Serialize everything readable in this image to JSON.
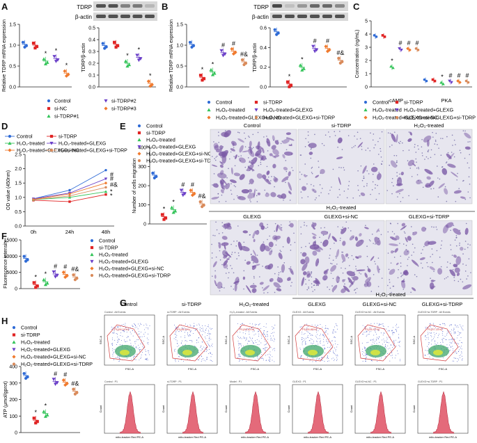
{
  "panel_letters": [
    "A",
    "B",
    "C",
    "D",
    "E",
    "F",
    "G",
    "H"
  ],
  "colors": {
    "control": "#2f6bd6",
    "sitdrp": "#e02424",
    "h2o2": "#34c45a",
    "glexg": "#6a3fc8",
    "glexg_sinc": "#f07a2e",
    "glexg_sitdrp": "#d98a5a",
    "blot": "#3a3a3a",
    "stain": "#7b5aa6"
  },
  "blot_labels": {
    "tdrp": "TDRP",
    "actin": "β-actin"
  },
  "legend_A": [
    "Control",
    "si-NC",
    "si-TDRP#1",
    "si-TDRP#2",
    "si-TDRP#3"
  ],
  "legend_B": [
    "Control",
    "si-TDRP",
    "H₂O₂-treated",
    "H₂O₂-treated+GLEXG",
    "H₂O₂-treated+GLEXG+si-NC",
    "H₂O₂-treated+GLEXG+si-TDRP"
  ],
  "legend_C": [
    "Control",
    "si-TDRP",
    "H₂O₂-treated",
    "H₂O₂-treated+GLEXG",
    "H₂O₂-treated+GLEXG+si-NC",
    "H₂O₂-treated+GLEXG+si-TDRP"
  ],
  "legend_D": [
    "Control",
    "si-TDRP",
    "H₂O₂-treated",
    "H₂O₂-treated+GLEXG",
    "H₂O₂-treated+GLEXG+si-NC",
    "H₂O₂-treated+GLEXG+si-TDRP"
  ],
  "legend_E": [
    "Control",
    "si-TDRP",
    "H₂O₂-treated",
    "H₂O₂-treated+GLEXG",
    "H₂O₂-treated+GLEXG+si-NC",
    "H₂O₂-treated+GLEXG+si-TDRP"
  ],
  "legend_F": [
    "Control",
    "si-TDRP",
    "H₂O₂-treated",
    "H₂O₂-treated+GLEXG",
    "H₂O₂-treated+GLEXG+si-NC",
    "H₂O₂-treated+GLEXG+si-TDRP"
  ],
  "legend_H": [
    "Control",
    "si-TDRP",
    "H₂O₂-treated",
    "H₂O₂-treated+GLEXG",
    "H₂O₂-treated+GLEXG+si-NC",
    "H₂O₂-treated+GLEXG+si-TDRP"
  ],
  "micro": {
    "row1": [
      "Control",
      "si-TDRP",
      "H₂O₂-treated"
    ],
    "group": "H₂O₂-treated",
    "row2": [
      "GLEXG",
      "GLEXG+si-NC",
      "GLEXG+si-TDRP"
    ]
  },
  "flow": {
    "group": "H₂O₂-treated",
    "titles": [
      "Control",
      "si-TDRP",
      "H₂O₂-treated",
      "GLEXG",
      "GLEXG+si-NC",
      "GLEXG+si-TDRP"
    ],
    "scatter_captions": [
      "Control : All Events",
      "si-TDRP : All Events",
      "H₂O₂-treated : All Events",
      "GLEXG : All Events",
      "GLEXG+si-NC : All Events",
      "GLEXG+si-TDRP : All Events"
    ],
    "gate_labels": [
      "P1(96.10%)",
      "P1(96.9%)",
      "P1(96.62%)",
      "P1(95.85%)",
      "P1(95.97%)",
      "P1(97.10%)"
    ],
    "hist_captions": [
      "Control : P1",
      "si-TDRP : P1",
      "Model : P1",
      "GLEXG : P1",
      "GLEXG+si-NC : P1",
      "GLEXG+si-TDRP : P1"
    ],
    "scatter_x": "FSC-A",
    "scatter_y": "SSC-A",
    "hist_x": "mito-tracker Red PE-A",
    "hist_y": "Count"
  },
  "chart_data": [
    {
      "panel": "A",
      "type": "scatter",
      "title": "",
      "ylabel": "Relative TDRP mRNA expression",
      "ylim": [
        0,
        1.5
      ],
      "yticks": [
        "0.0",
        "0.5",
        "1.0",
        "1.5"
      ],
      "categories": [
        "Control",
        "si-NC",
        "si-TDRP#1",
        "si-TDRP#2",
        "si-TDRP#3"
      ],
      "values": [
        1.02,
        1.0,
        0.62,
        0.68,
        0.33
      ],
      "annotations": [
        "",
        "",
        "*",
        "*",
        "*"
      ]
    },
    {
      "panel": "A2",
      "type": "scatter",
      "ylabel": "TDRP/β-actin",
      "ylim": [
        0,
        0.5
      ],
      "yticks": [
        "0.0",
        "0.1",
        "0.2",
        "0.3",
        "0.4",
        "0.5"
      ],
      "categories": [
        "Control",
        "si-NC",
        "si-TDRP#1",
        "si-TDRP#2",
        "si-TDRP#3"
      ],
      "values": [
        0.35,
        0.36,
        0.2,
        0.25,
        0.03
      ],
      "annotations": [
        "",
        "",
        "*",
        "*",
        "*"
      ]
    },
    {
      "panel": "B",
      "type": "scatter",
      "ylabel": "Relative TDRP mRNA expression",
      "ylim": [
        0,
        1.5
      ],
      "yticks": [
        "0.0",
        "0.5",
        "1.0",
        "1.5"
      ],
      "categories": [
        "Control",
        "si-TDRP",
        "H₂O₂-treated",
        "H₂O₂-treated+GLEXG",
        "H₂O₂-treated+GLEXG+si-NC",
        "H₂O₂-treated+GLEXG+si-TDRP"
      ],
      "values": [
        1.02,
        0.23,
        0.36,
        0.82,
        0.86,
        0.6
      ],
      "annotations": [
        "",
        "*",
        "*",
        "#",
        "#",
        "#&"
      ]
    },
    {
      "panel": "B2",
      "type": "scatter",
      "ylabel": "TDRP/β-actin",
      "ylim": [
        0,
        0.6
      ],
      "yticks": [
        "0.0",
        "0.2",
        "0.4",
        "0.6"
      ],
      "categories": [
        "Control",
        "si-TDRP",
        "H₂O₂-treated",
        "H₂O₂-treated+GLEXG",
        "H₂O₂-treated+GLEXG+si-NC",
        "H₂O₂-treated+GLEXG+si-TDRP"
      ],
      "values": [
        0.56,
        0.03,
        0.2,
        0.39,
        0.39,
        0.27
      ],
      "annotations": [
        "",
        "*",
        "*",
        "#",
        "#",
        "#&"
      ]
    },
    {
      "panel": "C",
      "type": "scatter",
      "ylabel": "Concentration (ng/mL)",
      "ylim": [
        0,
        5
      ],
      "yticks": [
        "0",
        "1",
        "2",
        "3",
        "4",
        "5"
      ],
      "groups": [
        "cAMP",
        "PKA"
      ],
      "series": [
        {
          "name": "Control",
          "values": [
            3.85,
            0.5
          ]
        },
        {
          "name": "si-TDRP",
          "values": [
            3.85,
            0.5
          ]
        },
        {
          "name": "H₂O₂-treated",
          "values": [
            1.5,
            0.28
          ]
        },
        {
          "name": "H₂O₂-treated+GLEXG",
          "values": [
            2.85,
            0.4
          ]
        },
        {
          "name": "H₂O₂-treated+GLEXG+si-NC",
          "values": [
            2.85,
            0.4
          ]
        },
        {
          "name": "H₂O₂-treated+GLEXG+si-TDRP",
          "values": [
            2.85,
            0.4
          ]
        }
      ],
      "annotations": [
        [
          "",
          "",
          "*",
          "#",
          "#",
          "#"
        ],
        [
          "",
          "",
          "*",
          "#",
          "#",
          "#"
        ]
      ]
    },
    {
      "panel": "D",
      "type": "line",
      "ylabel": "OD value (450nm)",
      "xlabel": "",
      "ylim": [
        0,
        2.5
      ],
      "yticks": [
        "0.0",
        "0.5",
        "1.0",
        "1.5",
        "2.0",
        "2.5"
      ],
      "x": [
        "0h",
        "24h",
        "48h"
      ],
      "series": [
        {
          "name": "Control",
          "values": [
            0.95,
            1.25,
            1.95
          ]
        },
        {
          "name": "si-TDRP",
          "values": [
            0.9,
            0.85,
            1.1
          ]
        },
        {
          "name": "H₂O₂-treated",
          "values": [
            0.92,
            1.0,
            1.2
          ]
        },
        {
          "name": "H₂O₂-treated+GLEXG",
          "values": [
            0.95,
            1.15,
            1.65
          ]
        },
        {
          "name": "H₂O₂-treated+GLEXG+si-NC",
          "values": [
            0.93,
            1.12,
            1.5
          ]
        },
        {
          "name": "H₂O₂-treated+GLEXG+si-TDRP",
          "values": [
            0.92,
            1.05,
            1.35
          ]
        }
      ],
      "annotations": [
        "#",
        "#",
        "#&",
        "*",
        "*"
      ]
    },
    {
      "panel": "E",
      "type": "scatter",
      "ylabel": "Number of cells migration",
      "ylim": [
        0,
        400
      ],
      "yticks": [
        "0",
        "100",
        "200",
        "300",
        "400"
      ],
      "categories": [
        "Control",
        "si-TDRP",
        "H₂O₂-treated",
        "H₂O₂-treated+GLEXG",
        "H₂O₂-treated+GLEXG+si-NC",
        "H₂O₂-treated+GLEXG+si-TDRP"
      ],
      "values": [
        255,
        38,
        75,
        165,
        165,
        105
      ],
      "annotations": [
        "",
        "*",
        "*",
        "#",
        "#",
        "#&"
      ]
    },
    {
      "panel": "F",
      "type": "scatter",
      "ylabel": "Fluorescence intensity",
      "ylim": [
        0,
        15000
      ],
      "yticks": [
        "0",
        "5000",
        "10000",
        "15000"
      ],
      "categories": [
        "Control",
        "si-TDRP",
        "H₂O₂-treated",
        "H₂O₂-treated+GLEXG",
        "H₂O₂-treated+GLEXG+si-NC",
        "H₂O₂-treated+GLEXG+si-TDRP"
      ],
      "values": [
        9300,
        1200,
        2100,
        4500,
        4400,
        3600
      ],
      "annotations": [
        "",
        "*",
        "*",
        "#",
        "#",
        "#&"
      ]
    },
    {
      "panel": "H",
      "type": "scatter",
      "ylabel": "ATP (μmol/gprot)",
      "ylim": [
        0,
        400
      ],
      "yticks": [
        "0",
        "100",
        "200",
        "300",
        "400"
      ],
      "categories": [
        "Control",
        "si-TDRP",
        "H₂O₂-treated",
        "H₂O₂-treated+GLEXG",
        "H₂O₂-treated+GLEXG+si-NC",
        "H₂O₂-treated+GLEXG+si-TDRP"
      ],
      "values": [
        345,
        75,
        115,
        310,
        305,
        250
      ],
      "annotations": [
        "",
        "*",
        "*",
        "#",
        "#",
        "#&"
      ]
    }
  ]
}
